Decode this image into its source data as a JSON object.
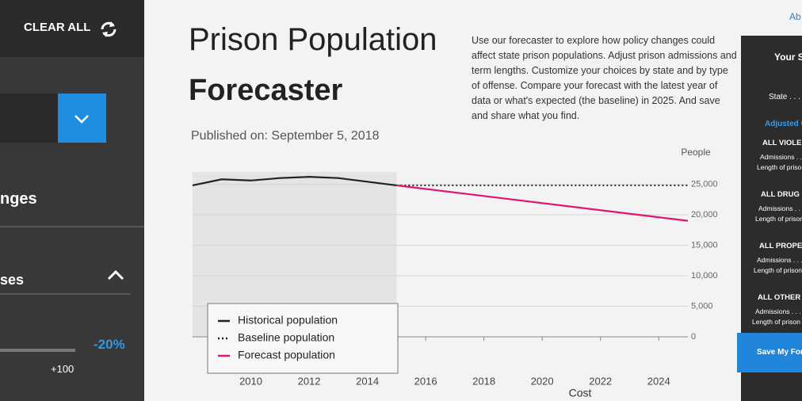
{
  "sidebar": {
    "clear_all": "CLEAR ALL",
    "section_1": "nges",
    "section_2": "ses",
    "slider_value": "-20%",
    "slider_label": "+100"
  },
  "header": {
    "title_line_1": "Prison Population",
    "title_line_2": "Forecaster",
    "published": "Published on: September 5, 2018",
    "description": "Use our forecaster to explore how policy changes could affect state prison populations. Adjust prison admissions and term lengths. Customize your choices by state and by type of offense. Compare your forecast with the latest year of data or what's expected (the baseline) in 2025. And save and share what you find."
  },
  "chart_data": {
    "type": "line",
    "y_axis_label": "People",
    "xlim": [
      2008,
      2025
    ],
    "xticks": [
      2010,
      2012,
      2014,
      2016,
      2018,
      2020,
      2022,
      2024
    ],
    "ylim": [
      0,
      27000
    ],
    "yticks": [
      0,
      {
        "value": 5000,
        "label": "5,000"
      },
      {
        "value": 10000,
        "label": "10,000"
      },
      {
        "value": 15000,
        "label": "15,000"
      },
      {
        "value": 20000,
        "label": "20,000"
      },
      {
        "value": 25000,
        "label": "25,000"
      }
    ],
    "grid": true,
    "series": [
      {
        "name": "Historical population",
        "color": "#222222",
        "dash": "solid",
        "x": [
          2008,
          2009,
          2010,
          2011,
          2012,
          2013,
          2014,
          2015
        ],
        "values": [
          24800,
          25800,
          25600,
          26000,
          26200,
          26000,
          25400,
          24800
        ]
      },
      {
        "name": "Baseline population",
        "color": "#222222",
        "dash": "dotted",
        "x": [
          2015,
          2025
        ],
        "values": [
          24800,
          24800
        ]
      },
      {
        "name": "Forecast population",
        "color": "#e0156f",
        "dash": "solid",
        "x": [
          2015,
          2025
        ],
        "values": [
          24800,
          19000
        ]
      }
    ]
  },
  "next_section": "Cost",
  "right_panel": {
    "top_link": "Ab",
    "title": "Your Se",
    "state": "State . . . .",
    "adjusted": "Adjusted O",
    "groups": [
      {
        "name": "ALL VIOLEN",
        "admissions": "Admissions . . .",
        "length": "Length of priso"
      },
      {
        "name": "ALL DRUG OF",
        "admissions": "Admissions . . . .",
        "length": "Length of prison t"
      },
      {
        "name": "ALL PROPERTY O",
        "admissions": "Admissions . . . .",
        "length": "Length of prison te"
      },
      {
        "name": "ALL OTHER OFFEN",
        "admissions": "Admissions . . . .",
        "length": "Length of prison term"
      }
    ],
    "button": "Save My Fore"
  }
}
